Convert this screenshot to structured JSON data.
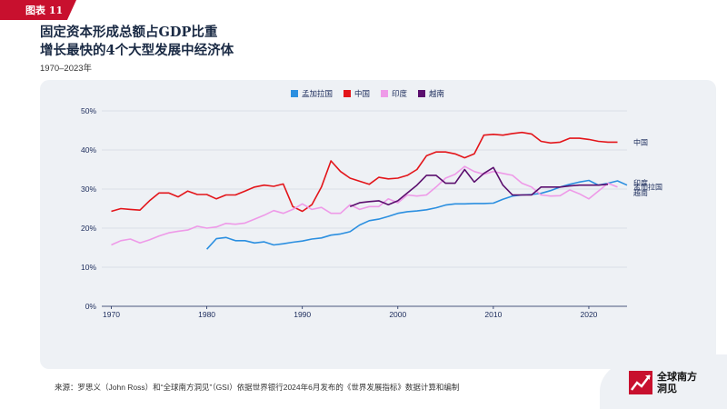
{
  "header": {
    "tag": "图表 11",
    "title_line1": "固定资本形成总额占GDP比重",
    "title_line2": "增长最快的4个大型发展中经济体",
    "subtitle": "1970–2023年"
  },
  "footer": {
    "source": "来源：罗思义（John Ross）和“全球南方洞见”（GSI）依据世界银行2024年6月发布的《世界发展指标》数据计算和编制",
    "logo_line1": "全球南方",
    "logo_line2": "洞见"
  },
  "colors": {
    "bangladesh": "#2b8fe0",
    "china": "#e3151a",
    "india": "#ee9ae8",
    "vietnam": "#5b0f6e",
    "brand": "#c8102e"
  },
  "chart_data": {
    "type": "line",
    "xlim": [
      1969,
      2024
    ],
    "ylim": [
      0,
      50
    ],
    "x_ticks": [
      1970,
      1980,
      1990,
      2000,
      2010,
      2020
    ],
    "y_ticks": [
      0,
      10,
      20,
      30,
      40,
      50
    ],
    "y_tick_labels": [
      "0%",
      "10%",
      "20%",
      "30%",
      "40%",
      "50%"
    ],
    "legend": [
      "孟加拉国",
      "中国",
      "印度",
      "越南"
    ],
    "series": [
      {
        "key": "bangladesh",
        "name": "孟加拉国",
        "end_label": "孟加拉国",
        "start_year": 1980,
        "values": [
          14.6,
          17.3,
          17.6,
          16.8,
          16.8,
          16.2,
          16.5,
          15.7,
          16.0,
          16.4,
          16.7,
          17.2,
          17.5,
          18.2,
          18.5,
          19.1,
          20.8,
          21.9,
          22.3,
          23.0,
          23.8,
          24.2,
          24.4,
          24.7,
          25.2,
          25.9,
          26.2,
          26.2,
          26.3,
          26.3,
          26.4,
          27.4,
          28.2,
          28.5,
          28.6,
          28.9,
          29.6,
          30.5,
          31.2,
          31.8,
          32.2,
          31.0,
          31.5,
          32.1,
          31.0
        ]
      },
      {
        "key": "china",
        "name": "中国",
        "end_label": "中国",
        "start_year": 1970,
        "values": [
          24.3,
          25.0,
          24.8,
          24.6,
          27.0,
          29.0,
          29.0,
          28.0,
          29.5,
          28.6,
          28.6,
          27.5,
          28.5,
          28.5,
          29.5,
          30.5,
          31.0,
          30.7,
          31.3,
          25.5,
          24.3,
          26.0,
          30.5,
          37.2,
          34.5,
          32.8,
          32.0,
          31.2,
          33.0,
          32.6,
          32.8,
          33.5,
          35.0,
          38.5,
          39.5,
          39.5,
          39.0,
          38.0,
          39.0,
          43.8,
          44.0,
          43.8,
          44.2,
          44.5,
          44.1,
          42.2,
          41.8,
          42.0,
          43.0,
          43.0,
          42.7,
          42.2,
          42.0,
          42.0
        ]
      },
      {
        "key": "india",
        "name": "印度",
        "end_label": "印度",
        "start_year": 1970,
        "values": [
          15.7,
          16.8,
          17.2,
          16.2,
          17.0,
          18.0,
          18.8,
          19.2,
          19.5,
          20.5,
          20.0,
          20.3,
          21.2,
          21.0,
          21.3,
          22.3,
          23.3,
          24.5,
          23.8,
          24.8,
          26.2,
          24.8,
          25.3,
          23.8,
          23.8,
          26.0,
          24.8,
          25.5,
          25.5,
          27.5,
          26.5,
          28.5,
          28.2,
          28.5,
          30.5,
          32.8,
          33.8,
          35.8,
          34.5,
          33.8,
          34.5,
          34.0,
          33.5,
          31.5,
          30.5,
          28.5,
          28.2,
          28.3,
          29.8,
          28.8,
          27.5,
          29.5,
          31.5,
          30.5
        ]
      },
      {
        "key": "vietnam",
        "name": "越南",
        "end_label": "越南",
        "start_year": 1995,
        "values": [
          25.5,
          26.5,
          26.8,
          27.0,
          26.0,
          27.0,
          29.0,
          31.0,
          33.5,
          33.5,
          31.5,
          31.5,
          35.0,
          31.8,
          34.0,
          35.5,
          31.0,
          28.5,
          28.5,
          28.5,
          30.5,
          30.5,
          30.5,
          30.8,
          31.0,
          31.0,
          31.0,
          31.2
        ]
      }
    ]
  }
}
